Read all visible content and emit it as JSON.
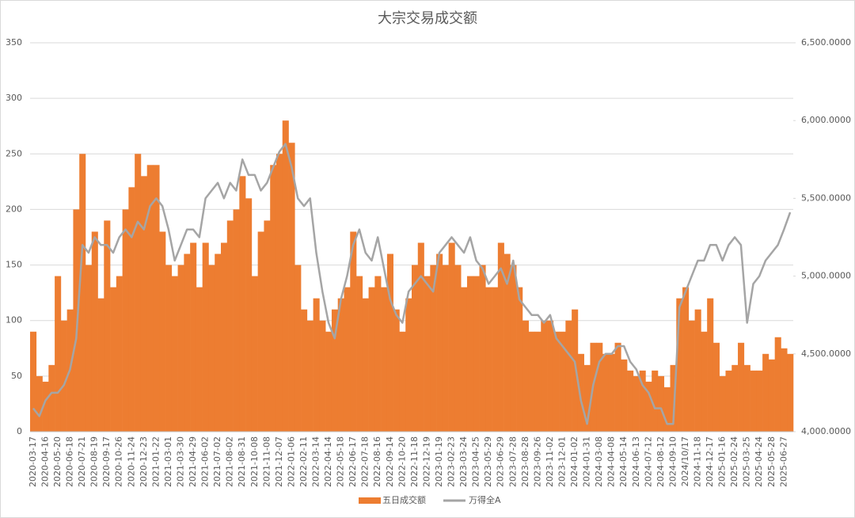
{
  "chart_data": {
    "type": "bar_line",
    "title": "大宗交易成交额",
    "categories": [
      "2020-03-17",
      null,
      "2020-04-16",
      null,
      "2020-05-20",
      null,
      "2020-06-18",
      null,
      "2020-07-21",
      null,
      "2020-08-19",
      null,
      "2020-09-17",
      null,
      "2020-10-26",
      null,
      "2020-11-24",
      null,
      "2020-12-23",
      null,
      "2021-01-22",
      null,
      "2021-03-01",
      null,
      "2021-03-30",
      null,
      "2021-04-29",
      null,
      "2021-06-02",
      null,
      "2021-07-02",
      null,
      "2021-08-02",
      null,
      "2021-08-31",
      null,
      "2021-10-08",
      null,
      "2021-11-08",
      null,
      "2021-12-07",
      null,
      "2022-01-06",
      null,
      "2022-02-11",
      null,
      "2022-03-14",
      null,
      "2022-04-14",
      null,
      "2022-05-18",
      null,
      "2022-06-17",
      null,
      "2022-07-18",
      null,
      "2022-08-16",
      null,
      "2022-09-14",
      null,
      "2022-10-20",
      null,
      "2022-11-18",
      null,
      "2022-12-19",
      null,
      "2023-01-19",
      null,
      "2023-02-23",
      null,
      "2023-03-24",
      null,
      "2023-04-25",
      null,
      "2023-05-29",
      null,
      "2023-06-29",
      null,
      "2023-07-28",
      null,
      "2023-08-28",
      null,
      "2023-09-26",
      null,
      "2023-11-02",
      null,
      "2023-12-01",
      null,
      "2024-01-02",
      null,
      "2024-01-31",
      null,
      "2024-03-08",
      null,
      "2024-04-08",
      null,
      "2024-05-14",
      null,
      "2024-06-13",
      null,
      "2024-07-12",
      null,
      "2024-08-12",
      null,
      "2024-09-10",
      null,
      "2024/10/17",
      null,
      "2024-11-18",
      null,
      "2024-12-17",
      null,
      "2025-01-16",
      null,
      "2025-02-24",
      null,
      "2025-03-25",
      null,
      "2025-04-24",
      null,
      "2025-05-28",
      null,
      "2025-06-27",
      null
    ],
    "series": [
      {
        "name": "五日成交额",
        "color": "#ed7d31",
        "axis": "y",
        "values": [
          90,
          50,
          45,
          60,
          140,
          100,
          110,
          200,
          250,
          150,
          180,
          120,
          190,
          130,
          140,
          200,
          220,
          250,
          230,
          240,
          240,
          180,
          150,
          140,
          150,
          160,
          170,
          130,
          170,
          150,
          160,
          170,
          190,
          200,
          230,
          210,
          140,
          180,
          190,
          240,
          250,
          280,
          260,
          150,
          110,
          100,
          120,
          100,
          90,
          110,
          120,
          130,
          180,
          140,
          120,
          130,
          140,
          130,
          160,
          110,
          90,
          120,
          150,
          170,
          140,
          150,
          160,
          150,
          170,
          150,
          130,
          140,
          140,
          150,
          130,
          130,
          170,
          160,
          150,
          130,
          100,
          90,
          90,
          100,
          100,
          90,
          90,
          100,
          110,
          70,
          60,
          80,
          80,
          70,
          70,
          80,
          65,
          55,
          50,
          55,
          45,
          55,
          50,
          40,
          60,
          120,
          130,
          100,
          110,
          90,
          120,
          80,
          50,
          55,
          60,
          80,
          60,
          55,
          55,
          70,
          65,
          85,
          75,
          70
        ]
      },
      {
        "name": "万得全A",
        "color": "#a5a5a5",
        "axis": "y2",
        "values": [
          4150,
          4100,
          4200,
          4250,
          4250,
          4300,
          4400,
          4600,
          5200,
          5150,
          5250,
          5200,
          5200,
          5150,
          5250,
          5300,
          5250,
          5350,
          5300,
          5450,
          5500,
          5450,
          5300,
          5100,
          5200,
          5300,
          5300,
          5250,
          5500,
          5550,
          5600,
          5500,
          5600,
          5550,
          5750,
          5650,
          5650,
          5550,
          5600,
          5700,
          5800,
          5850,
          5700,
          5500,
          5450,
          5500,
          5150,
          4900,
          4700,
          4600,
          4850,
          5000,
          5200,
          5300,
          5150,
          5100,
          5250,
          5050,
          4850,
          4750,
          4700,
          4900,
          4950,
          5000,
          4950,
          4900,
          5150,
          5200,
          5250,
          5200,
          5150,
          5250,
          5100,
          5050,
          4950,
          5000,
          5050,
          4950,
          5100,
          4850,
          4800,
          4750,
          4750,
          4700,
          4750,
          4600,
          4550,
          4500,
          4450,
          4200,
          4050,
          4300,
          4450,
          4500,
          4500,
          4550,
          4550,
          4450,
          4400,
          4300,
          4250,
          4150,
          4150,
          4050,
          4050,
          4800,
          4900,
          5000,
          5100,
          5100,
          5200,
          5200,
          5100,
          5200,
          5250,
          5200,
          4700,
          4950,
          5000,
          5100,
          5150,
          5200,
          5300,
          5410
        ]
      }
    ],
    "ylim": [
      0,
      350
    ],
    "yticks": [
      0,
      50,
      100,
      150,
      200,
      250,
      300,
      350
    ],
    "y2lim": [
      4000,
      6500
    ],
    "y2ticks": [
      {
        "value": 4000,
        "label": "4,000.0000"
      },
      {
        "value": 4500,
        "label": "4,500.0000"
      },
      {
        "value": 5000,
        "label": "5,000.0000"
      },
      {
        "value": 5500,
        "label": "5,500.0000"
      },
      {
        "value": 6000,
        "label": "6,000.0000"
      },
      {
        "value": 6500,
        "label": "6,500.0000"
      }
    ],
    "grid": true,
    "legend": "bottom"
  }
}
